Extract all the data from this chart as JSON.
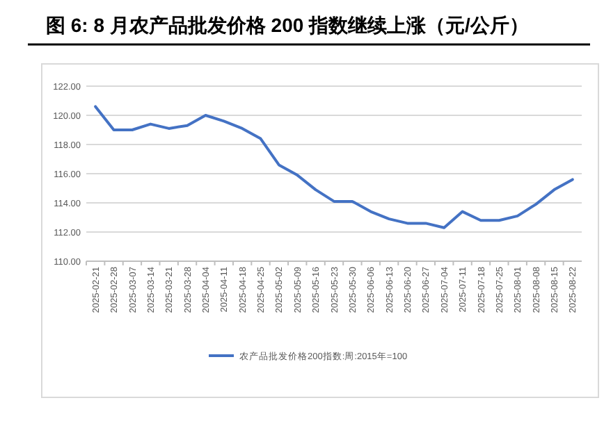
{
  "chart_data": {
    "type": "line",
    "title": "图 6: 8 月农产品批发价格 200 指数继续上涨（元/公斤）",
    "categories": [
      "2025-02-21",
      "2025-02-28",
      "2025-03-07",
      "2025-03-14",
      "2025-03-21",
      "2025-03-28",
      "2025-04-04",
      "2025-04-11",
      "2025-04-18",
      "2025-04-25",
      "2025-05-02",
      "2025-05-09",
      "2025-05-16",
      "2025-05-23",
      "2025-05-30",
      "2025-06-06",
      "2025-06-13",
      "2025-06-20",
      "2025-06-27",
      "2025-07-04",
      "2025-07-11",
      "2025-07-18",
      "2025-07-25",
      "2025-08-01",
      "2025-08-08",
      "2025-08-15",
      "2025-08-22"
    ],
    "series": [
      {
        "name": "农产品批发价格200指数:周:2015年=100",
        "color": "#4472c4",
        "values": [
          120.6,
          119.0,
          119.0,
          119.4,
          119.1,
          119.3,
          120.0,
          119.6,
          119.1,
          118.4,
          116.6,
          115.9,
          114.9,
          114.1,
          114.1,
          113.4,
          112.9,
          112.6,
          112.6,
          112.3,
          113.4,
          112.8,
          112.8,
          113.1,
          113.9,
          114.9,
          115.6
        ]
      }
    ],
    "ylim": [
      110,
      122
    ],
    "yticks": [
      {
        "value": 110,
        "label": "110.00"
      },
      {
        "value": 112,
        "label": "112.00"
      },
      {
        "value": 114,
        "label": "114.00"
      },
      {
        "value": 116,
        "label": "116.00"
      },
      {
        "value": 118,
        "label": "118.00"
      },
      {
        "value": 120,
        "label": "120.00"
      },
      {
        "value": 122,
        "label": "122.00"
      }
    ],
    "grid": "y",
    "legend": "bottom",
    "marker": "none",
    "line_style": "solid"
  }
}
